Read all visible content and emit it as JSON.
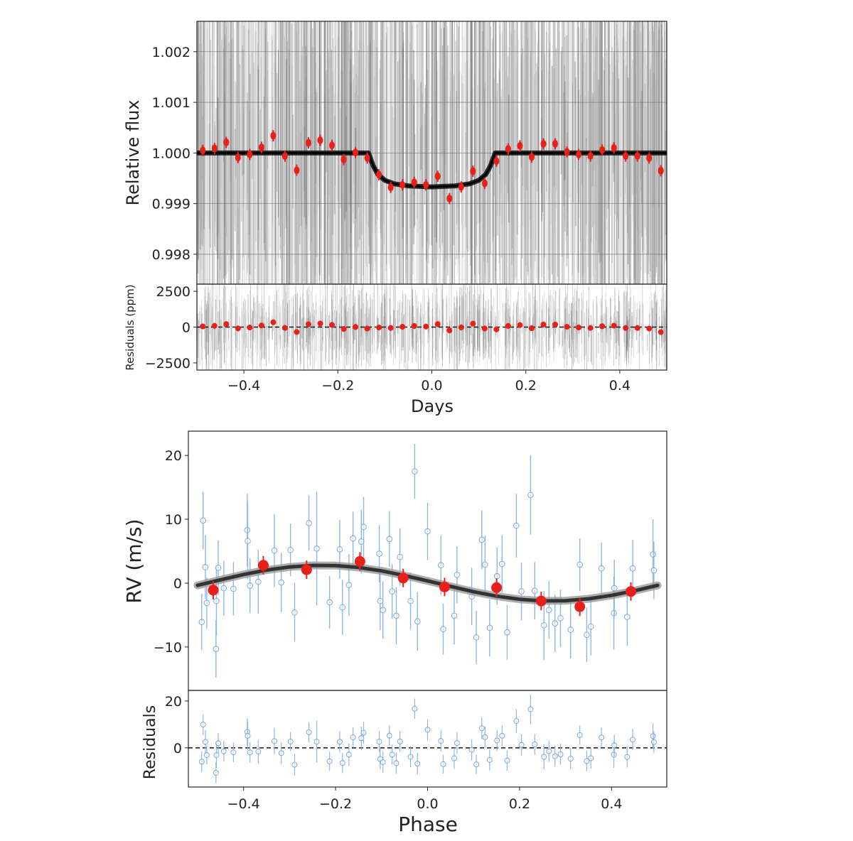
{
  "chart_data": [
    {
      "type": "scatter",
      "panel": "transit",
      "xlabel": "Days",
      "ylabel": "Relative flux",
      "residual_ylabel": "Residuals (ppm)",
      "xlim": [
        -0.5,
        0.5
      ],
      "ylim": [
        0.99741,
        1.0026
      ],
      "residual_ylim": [
        -3000,
        3000
      ],
      "xticks": [
        "-0.4",
        "-0.2",
        "0.0",
        "0.2",
        "0.4"
      ],
      "xtick_values": [
        -0.4,
        -0.2,
        0.0,
        0.2,
        0.4
      ],
      "yticks": [
        "1.002",
        "1.001",
        "1.000",
        "0.999",
        "0.998"
      ],
      "ytick_values": [
        1.002,
        1.001,
        1.0,
        0.999,
        0.998
      ],
      "residual_yticks": [
        "2500",
        "0",
        "−2500"
      ],
      "residual_ytick_values": [
        2500,
        0,
        -2500
      ],
      "grid": true,
      "colors": {
        "binned": "#e8201a",
        "model": "#111111",
        "raw_data": "#9a9a9a"
      },
      "binned_x": [
        -0.4875,
        -0.4625,
        -0.4375,
        -0.4125,
        -0.3875,
        -0.3625,
        -0.3375,
        -0.3125,
        -0.2875,
        -0.2625,
        -0.2375,
        -0.2125,
        -0.1875,
        -0.1625,
        -0.1375,
        -0.1125,
        -0.0875,
        -0.0625,
        -0.0375,
        -0.0125,
        0.0125,
        0.0375,
        0.0625,
        0.0875,
        0.1125,
        0.1375,
        0.1625,
        0.1875,
        0.2125,
        0.2375,
        0.2625,
        0.2875,
        0.3125,
        0.3375,
        0.3625,
        0.3875,
        0.4125,
        0.4375,
        0.4625,
        0.4875
      ],
      "binned_flux": [
        1.00005,
        1.00009,
        1.00021,
        0.99991,
        0.99997,
        1.00011,
        1.00034,
        0.99994,
        0.99966,
        1.0002,
        1.00025,
        1.00015,
        0.99987,
        1.00001,
        0.9999,
        0.99957,
        0.99932,
        0.99937,
        0.99942,
        0.99937,
        0.99954,
        0.9991,
        0.99933,
        0.99964,
        0.9994,
        0.99984,
        1.00008,
        1.00014,
        0.99992,
        1.00018,
        1.00018,
        1.00002,
        0.99997,
        0.99994,
        1.00006,
        1.0001,
        0.99994,
        0.99994,
        0.9999,
        0.99965
      ],
      "binned_residuals_ppm": [
        50,
        90,
        210,
        -90,
        -30,
        110,
        340,
        -60,
        -340,
        200,
        250,
        150,
        -130,
        10,
        -100,
        -30,
        -60,
        20,
        80,
        40,
        210,
        -230,
        -20,
        240,
        -100,
        -160,
        80,
        140,
        -80,
        180,
        180,
        20,
        -30,
        -60,
        60,
        100,
        -60,
        -60,
        -100,
        -350
      ],
      "model": [
        [
          -0.5,
          1.0
        ],
        [
          -0.135,
          1.0
        ],
        [
          -0.125,
          0.99975
        ],
        [
          -0.115,
          0.99958
        ],
        [
          -0.1,
          0.99946
        ],
        [
          -0.08,
          0.99939
        ],
        [
          -0.05,
          0.99935
        ],
        [
          0.0,
          0.99933
        ],
        [
          0.05,
          0.99935
        ],
        [
          0.08,
          0.99939
        ],
        [
          0.1,
          0.99946
        ],
        [
          0.115,
          0.99958
        ],
        [
          0.125,
          0.99975
        ],
        [
          0.135,
          1.0
        ],
        [
          0.5,
          1.0
        ]
      ]
    },
    {
      "type": "scatter",
      "panel": "rv",
      "xlabel": "Phase",
      "ylabel": "RV (m/s)",
      "residual_ylabel": "Residuals",
      "xlim": [
        -0.52,
        0.52
      ],
      "ylim": [
        -16.8,
        23.8
      ],
      "residual_ylim": [
        -16.7,
        24.5
      ],
      "xticks": [
        "-0.4",
        "-0.2",
        "0.0",
        "0.2",
        "0.4"
      ],
      "xtick_values": [
        -0.4,
        -0.2,
        0.0,
        0.2,
        0.4
      ],
      "yticks": [
        "20",
        "10",
        "0",
        "−10"
      ],
      "ytick_values": [
        20,
        10,
        0,
        -10
      ],
      "residual_yticks": [
        "20",
        "0"
      ],
      "residual_ytick_values": [
        20,
        0
      ],
      "grid": false,
      "colors": {
        "binned": "#e8201a",
        "model": "#333333",
        "data": "#6f9fd8"
      },
      "binned": [
        [
          -0.466,
          -1.1
        ],
        [
          -0.357,
          2.8
        ],
        [
          -0.263,
          2.1
        ],
        [
          -0.147,
          3.4
        ],
        [
          -0.053,
          0.8
        ],
        [
          0.037,
          -0.6
        ],
        [
          0.15,
          -0.7
        ],
        [
          0.247,
          -2.8
        ],
        [
          0.331,
          -3.7
        ],
        [
          0.442,
          -1.3
        ]
      ],
      "model": [
        [
          -0.5,
          -0.35
        ],
        [
          -0.45,
          0.52
        ],
        [
          -0.4,
          1.35
        ],
        [
          -0.35,
          2.04
        ],
        [
          -0.3,
          2.53
        ],
        [
          -0.25,
          2.78
        ],
        [
          -0.2,
          2.75
        ],
        [
          -0.15,
          2.45
        ],
        [
          -0.1,
          1.92
        ],
        [
          -0.05,
          1.19
        ],
        [
          0.0,
          0.35
        ],
        [
          0.05,
          -0.52
        ],
        [
          0.1,
          -1.35
        ],
        [
          0.15,
          -2.04
        ],
        [
          0.2,
          -2.53
        ],
        [
          0.25,
          -2.78
        ],
        [
          0.3,
          -2.75
        ],
        [
          0.35,
          -2.45
        ],
        [
          0.4,
          -1.92
        ],
        [
          0.45,
          -1.19
        ],
        [
          0.5,
          -0.35
        ]
      ],
      "points": [
        [
          -0.488,
          9.8,
          4.5
        ],
        [
          -0.483,
          2.5,
          5
        ],
        [
          -0.491,
          -6.1,
          4.4
        ],
        [
          -0.48,
          -3.1,
          4
        ],
        [
          -0.46,
          -10.3,
          4.5
        ],
        [
          -0.459,
          -2.8,
          5.4
        ],
        [
          -0.455,
          2.4,
          4.3
        ],
        [
          -0.443,
          -0.8,
          4.3
        ],
        [
          -0.422,
          -0.9,
          4.2
        ],
        [
          -0.392,
          8.3,
          5.7
        ],
        [
          -0.391,
          6.6,
          6
        ],
        [
          -0.386,
          -0.4,
          4.3
        ],
        [
          -0.368,
          0.2,
          5
        ],
        [
          -0.333,
          5.1,
          5.7
        ],
        [
          -0.318,
          0.1,
          4.6
        ],
        [
          -0.298,
          5.2,
          4.1
        ],
        [
          -0.289,
          -4.6,
          4.6
        ],
        [
          -0.258,
          9.4,
          4.3
        ],
        [
          -0.241,
          5.4,
          8.9
        ],
        [
          -0.213,
          -3.0,
          4.1
        ],
        [
          -0.191,
          5.3,
          4.6
        ],
        [
          -0.185,
          -3.8,
          4.3
        ],
        [
          -0.171,
          -0.3,
          4.8
        ],
        [
          -0.162,
          7.0,
          4.2
        ],
        [
          -0.144,
          6.5,
          5
        ],
        [
          -0.139,
          8.8,
          4.7
        ],
        [
          -0.105,
          4.6,
          4.5
        ],
        [
          -0.103,
          -2.8,
          4.5
        ],
        [
          -0.097,
          -4.2,
          4.5
        ],
        [
          -0.083,
          6.9,
          4.4
        ],
        [
          -0.077,
          -1.3,
          4.3
        ],
        [
          -0.068,
          -5.1,
          4.5
        ],
        [
          -0.06,
          4.1,
          4.5
        ],
        [
          -0.037,
          -2.8,
          4.5
        ],
        [
          -0.028,
          17.5,
          4.3
        ],
        [
          -0.022,
          -6.0,
          4.6
        ],
        [
          0.0,
          8.1,
          4.5
        ],
        [
          0.029,
          2.8,
          4.6
        ],
        [
          0.034,
          -7.2,
          4
        ],
        [
          0.058,
          -5.1,
          4.5
        ],
        [
          0.064,
          1.3,
          4.5
        ],
        [
          0.096,
          -2.1,
          4.5
        ],
        [
          0.106,
          -8.5,
          4.2
        ],
        [
          0.118,
          6.8,
          4.6
        ],
        [
          0.125,
          2.9,
          4.5
        ],
        [
          0.135,
          -7.0,
          4.5
        ],
        [
          0.151,
          1.1,
          4.5
        ],
        [
          0.162,
          3.0,
          4.5
        ],
        [
          0.173,
          -7.7,
          4.3
        ],
        [
          0.193,
          9.0,
          5
        ],
        [
          0.204,
          -1.3,
          4.5
        ],
        [
          0.224,
          13.8,
          6.2
        ],
        [
          0.233,
          -1.2,
          4.5
        ],
        [
          0.253,
          -6.6,
          5.4
        ],
        [
          0.264,
          -4.2,
          4.5
        ],
        [
          0.277,
          -6.3,
          4.5
        ],
        [
          0.289,
          -5.5,
          4.5
        ],
        [
          0.311,
          -7.3,
          4.5
        ],
        [
          0.331,
          2.9,
          4.1
        ],
        [
          0.346,
          -8.1,
          4.3
        ],
        [
          0.355,
          -6.8,
          4.5
        ],
        [
          0.378,
          2.3,
          4.1
        ],
        [
          0.405,
          -4.7,
          5.7
        ],
        [
          0.406,
          -0.8,
          4.5
        ],
        [
          0.434,
          -5.3,
          4.5
        ],
        [
          0.446,
          2.3,
          4.5
        ],
        [
          0.49,
          4.5,
          5.5
        ],
        [
          0.492,
          2.0,
          4.5
        ]
      ]
    }
  ]
}
